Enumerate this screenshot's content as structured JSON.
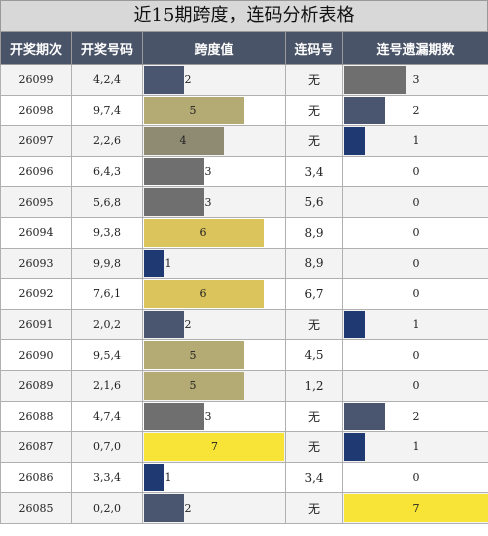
{
  "title": "近15期跨度，连码分析表格",
  "headers": [
    "开奖期次",
    "开奖号码",
    "跨度值",
    "连码号",
    "连号遗漏期数"
  ],
  "rows": [
    {
      "issue": "26099",
      "numbers": "4,2,4",
      "span": "2",
      "lian": "无",
      "miss": "3"
    },
    {
      "issue": "26098",
      "numbers": "9,7,4",
      "span": "5",
      "lian": "无",
      "miss": "2"
    },
    {
      "issue": "26097",
      "numbers": "2,2,6",
      "span": "4",
      "lian": "无",
      "miss": "1"
    },
    {
      "issue": "26096",
      "numbers": "6,4,3",
      "span": "3",
      "lian": "3,4",
      "miss": "0"
    },
    {
      "issue": "26095",
      "numbers": "5,6,8",
      "span": "3",
      "lian": "5,6",
      "miss": "0"
    },
    {
      "issue": "26094",
      "numbers": "9,3,8",
      "span": "6",
      "lian": "8,9",
      "miss": "0"
    },
    {
      "issue": "26093",
      "numbers": "9,9,8",
      "span": "1",
      "lian": "8,9",
      "miss": "0"
    },
    {
      "issue": "26092",
      "numbers": "7,6,1",
      "span": "6",
      "lian": "6,7",
      "miss": "0"
    },
    {
      "issue": "26091",
      "numbers": "2,0,2",
      "span": "2",
      "lian": "无",
      "miss": "1"
    },
    {
      "issue": "26090",
      "numbers": "9,5,4",
      "span": "5",
      "lian": "4,5",
      "miss": "0"
    },
    {
      "issue": "26089",
      "numbers": "2,1,6",
      "span": "5",
      "lian": "1,2",
      "miss": "0"
    },
    {
      "issue": "26088",
      "numbers": "4,7,4",
      "span": "3",
      "lian": "无",
      "miss": "2"
    },
    {
      "issue": "26087",
      "numbers": "0,7,0",
      "span": "7",
      "lian": "无",
      "miss": "1"
    },
    {
      "issue": "26086",
      "numbers": "3,3,4",
      "span": "1",
      "lian": "3,4",
      "miss": "0"
    },
    {
      "issue": "26085",
      "numbers": "0,2,0",
      "span": "2",
      "lian": "无",
      "miss": "7"
    }
  ],
  "span_colors": {
    "1": "#1f3a73",
    "2": "#4a5570",
    "3": "#6f6f6f",
    "4": "#8f8a72",
    "5": "#b4aa74",
    "6": "#dcc45c",
    "7": "#f7e437"
  },
  "miss_colors": {
    "1": "#1f3a73",
    "2": "#4a5570",
    "3": "#6f6f6f",
    "7": "#f7e437"
  }
}
